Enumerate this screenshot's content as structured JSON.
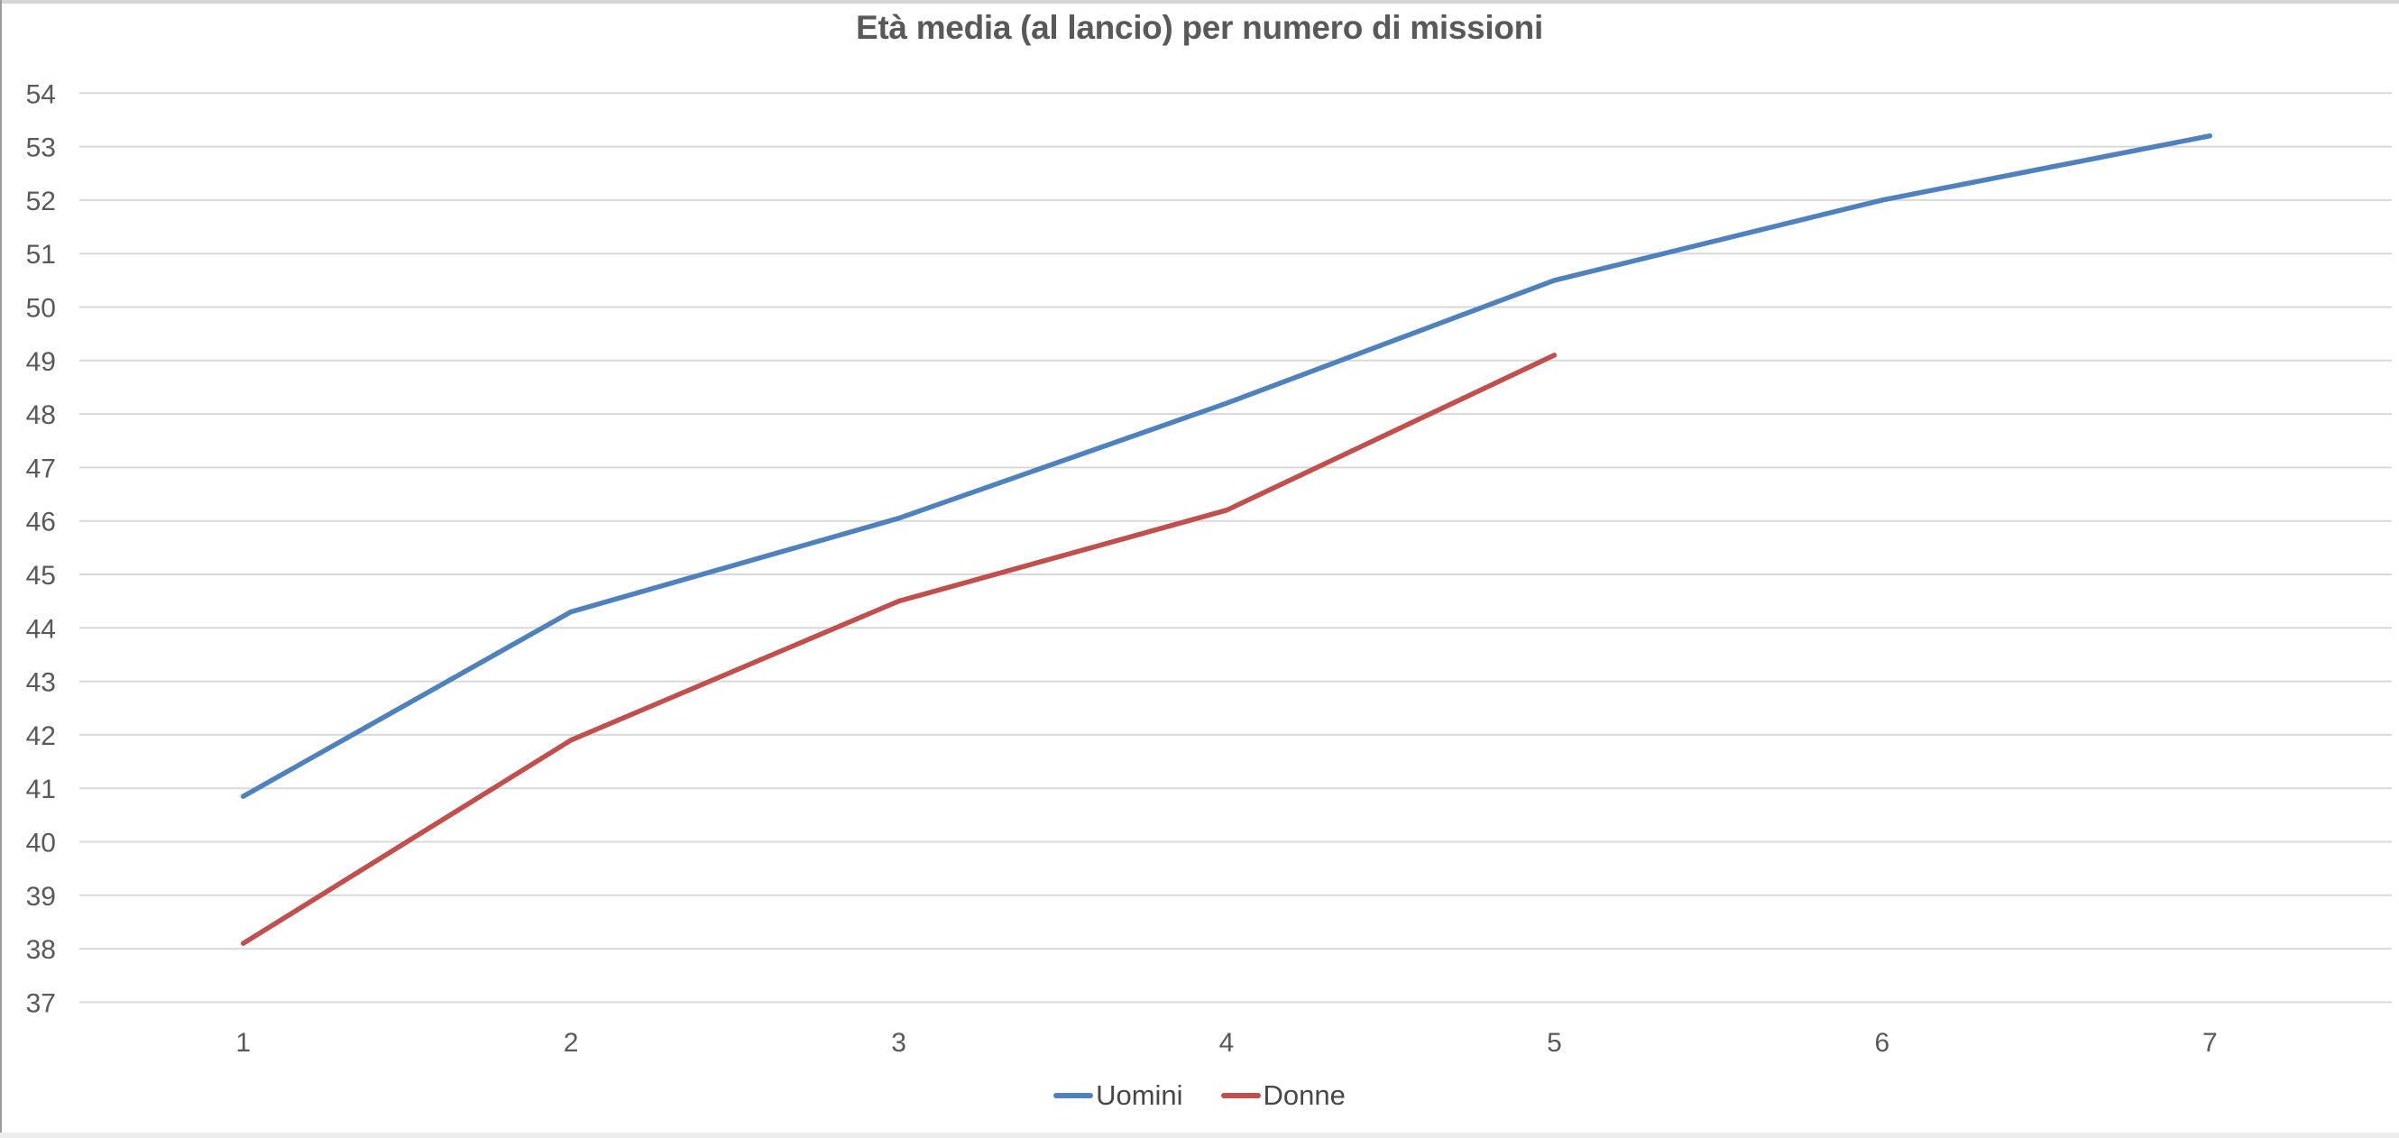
{
  "chart_data": {
    "type": "line",
    "title": "Età media (al lancio) per numero di missioni",
    "xlabel": "",
    "ylabel": "",
    "categories": [
      "1",
      "2",
      "3",
      "4",
      "5",
      "6",
      "7"
    ],
    "series": [
      {
        "name": "Uomini",
        "color": "#4f81bd",
        "values": [
          40.85,
          44.3,
          46.05,
          48.2,
          50.5,
          52.0,
          53.2
        ]
      },
      {
        "name": "Donne",
        "color": "#c0504d",
        "values": [
          38.1,
          41.9,
          44.5,
          46.2,
          49.1
        ]
      }
    ],
    "ylim": [
      37,
      54
    ],
    "y_tick_interval": 1,
    "y_ticks": [
      37,
      38,
      39,
      40,
      41,
      42,
      43,
      44,
      45,
      46,
      47,
      48,
      49,
      50,
      51,
      52,
      53,
      54
    ],
    "grid": "horizontal-only",
    "legend_position": "bottom-center",
    "colors": {
      "title": "#595959",
      "tick_labels": "#595959",
      "gridlines": "#d9d9d9",
      "legend_text": "#474747",
      "background": "#ffffff"
    }
  }
}
